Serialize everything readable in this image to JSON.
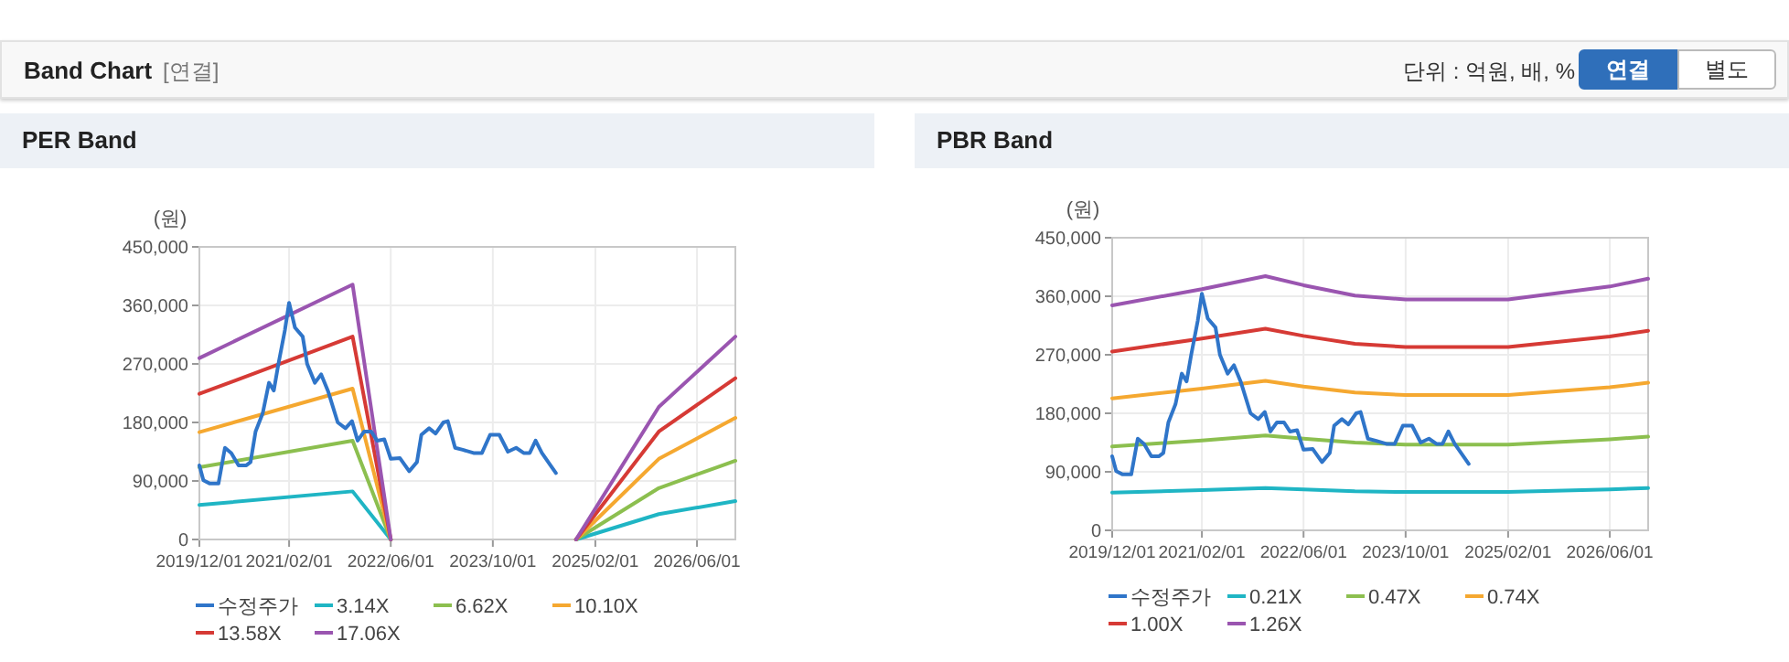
{
  "chart_data": [
    {
      "type": "line",
      "title": "PER Band",
      "ylabel": "(원)",
      "annotations": [
        "Band Chart",
        "[연결]",
        "단위 : 억원, 배, %",
        "연결",
        "별도"
      ],
      "xlim": [
        "2019-12-01",
        "2026-12-01"
      ],
      "xticks": [
        {
          "value": "2019-12-01",
          "label": "2019/12/01"
        },
        {
          "value": "2021-02-01",
          "label": "2021/02/01"
        },
        {
          "value": "2022-06-01",
          "label": "2022/06/01"
        },
        {
          "value": "2023-10-01",
          "label": "2023/10/01"
        },
        {
          "value": "2025-02-01",
          "label": "2025/02/01"
        },
        {
          "value": "2026-06-01",
          "label": "2026/06/01"
        }
      ],
      "ylim": [
        0,
        450000
      ],
      "yticks": [
        {
          "value": 0,
          "label": "0"
        },
        {
          "value": 90000,
          "label": "90,000"
        },
        {
          "value": 180000,
          "label": "180,000"
        },
        {
          "value": 270000,
          "label": "270,000"
        },
        {
          "value": 360000,
          "label": "360,000"
        },
        {
          "value": 450000,
          "label": "450,000"
        }
      ],
      "grid": true,
      "legend": "bottom",
      "marker": "none",
      "line_style": "solid",
      "series": [
        {
          "name": "수정주가",
          "color": "#2f75c9",
          "x": [
            "2019-12-01",
            "2019-12-20",
            "2020-01-20",
            "2020-03-01",
            "2020-04-01",
            "2020-05-01",
            "2020-06-05",
            "2020-07-12",
            "2020-08-01",
            "2020-08-25",
            "2020-09-28",
            "2020-10-28",
            "2020-11-20",
            "2020-12-12",
            "2021-01-12",
            "2021-02-01",
            "2021-03-01",
            "2021-04-07",
            "2021-04-28",
            "2021-06-04",
            "2021-07-04",
            "2021-08-07",
            "2021-09-21",
            "2021-10-28",
            "2021-11-28",
            "2021-12-25",
            "2022-01-25",
            "2022-02-28",
            "2022-03-28",
            "2022-05-01",
            "2022-06-01",
            "2022-07-15",
            "2022-08-28",
            "2022-10-04",
            "2022-10-25",
            "2022-12-01",
            "2023-01-01",
            "2023-02-07",
            "2023-02-28",
            "2023-04-04",
            "2023-05-10",
            "2023-07-01",
            "2023-08-10",
            "2023-09-18",
            "2023-11-01",
            "2023-12-12",
            "2024-01-20",
            "2024-02-25",
            "2024-03-25",
            "2024-04-22",
            "2024-05-22",
            "2024-07-28"
          ],
          "values": [
            114000,
            91000,
            86000,
            86000,
            141000,
            133000,
            114000,
            114000,
            119000,
            166000,
            194000,
            241000,
            229000,
            270000,
            322000,
            364000,
            326000,
            312000,
            270000,
            241000,
            254000,
            227000,
            180000,
            171000,
            182000,
            152000,
            166000,
            166000,
            152000,
            154000,
            124000,
            125000,
            105000,
            119000,
            161000,
            171000,
            163000,
            180000,
            182000,
            141000,
            138000,
            133000,
            133000,
            161000,
            161000,
            135000,
            141000,
            133000,
            133000,
            152000,
            133000,
            102000
          ]
        },
        {
          "name": "3.14X",
          "color": "#1fb5c4",
          "x": [
            "2019-12-01",
            "2021-12-01",
            "2022-06-01",
            "2023-06-01",
            "2024-11-01",
            "2025-12-01",
            "2026-12-01"
          ],
          "values": [
            53000,
            74000,
            0,
            null,
            0,
            39000,
            59000
          ]
        },
        {
          "name": "6.62X",
          "color": "#8cbf4f",
          "x": [
            "2019-12-01",
            "2021-12-01",
            "2022-06-01",
            "2023-06-01",
            "2024-11-01",
            "2025-12-01",
            "2026-12-01"
          ],
          "values": [
            111000,
            152000,
            0,
            null,
            0,
            79000,
            121000
          ]
        },
        {
          "name": "10.10X",
          "color": "#f5a830",
          "x": [
            "2019-12-01",
            "2021-12-01",
            "2022-06-01",
            "2023-06-01",
            "2024-11-01",
            "2025-12-01",
            "2026-12-01"
          ],
          "values": [
            165000,
            232000,
            0,
            null,
            0,
            124000,
            187000
          ]
        },
        {
          "name": "13.58X",
          "color": "#d63a35",
          "x": [
            "2019-12-01",
            "2021-12-01",
            "2022-06-01",
            "2023-06-01",
            "2024-11-01",
            "2025-12-01",
            "2026-12-01"
          ],
          "values": [
            224000,
            312000,
            0,
            null,
            0,
            166000,
            248000
          ]
        },
        {
          "name": "17.06X",
          "color": "#9a55b0",
          "x": [
            "2019-12-01",
            "2021-12-01",
            "2022-06-01",
            "2023-06-01",
            "2024-11-01",
            "2025-12-01",
            "2026-12-01"
          ],
          "values": [
            279000,
            392000,
            0,
            null,
            0,
            204000,
            312000
          ]
        }
      ]
    },
    {
      "type": "line",
      "title": "PBR Band",
      "ylabel": "(원)",
      "xlim": [
        "2019-12-01",
        "2026-12-01"
      ],
      "xticks": [
        {
          "value": "2019-12-01",
          "label": "2019/12/01"
        },
        {
          "value": "2021-02-01",
          "label": "2021/02/01"
        },
        {
          "value": "2022-06-01",
          "label": "2022/06/01"
        },
        {
          "value": "2023-10-01",
          "label": "2023/10/01"
        },
        {
          "value": "2025-02-01",
          "label": "2025/02/01"
        },
        {
          "value": "2026-06-01",
          "label": "2026/06/01"
        }
      ],
      "ylim": [
        0,
        450000
      ],
      "yticks": [
        {
          "value": 0,
          "label": "0"
        },
        {
          "value": 90000,
          "label": "90,000"
        },
        {
          "value": 180000,
          "label": "180,000"
        },
        {
          "value": 270000,
          "label": "270,000"
        },
        {
          "value": 360000,
          "label": "360,000"
        },
        {
          "value": 450000,
          "label": "450,000"
        }
      ],
      "grid": true,
      "legend": "bottom",
      "marker": "none",
      "line_style": "solid",
      "series": [
        {
          "name": "수정주가",
          "color": "#2f75c9",
          "x": [
            "2019-12-01",
            "2019-12-20",
            "2020-01-20",
            "2020-03-01",
            "2020-04-01",
            "2020-05-01",
            "2020-06-05",
            "2020-07-12",
            "2020-08-01",
            "2020-08-25",
            "2020-09-28",
            "2020-10-28",
            "2020-11-20",
            "2020-12-12",
            "2021-01-12",
            "2021-02-01",
            "2021-03-01",
            "2021-04-07",
            "2021-04-28",
            "2021-06-04",
            "2021-07-04",
            "2021-08-07",
            "2021-09-21",
            "2021-10-28",
            "2021-11-28",
            "2021-12-25",
            "2022-01-25",
            "2022-02-28",
            "2022-03-28",
            "2022-05-01",
            "2022-06-01",
            "2022-07-15",
            "2022-08-28",
            "2022-10-04",
            "2022-10-25",
            "2022-12-01",
            "2023-01-01",
            "2023-02-07",
            "2023-02-28",
            "2023-04-04",
            "2023-05-10",
            "2023-07-01",
            "2023-08-10",
            "2023-09-18",
            "2023-11-01",
            "2023-12-12",
            "2024-01-20",
            "2024-02-25",
            "2024-03-25",
            "2024-04-22",
            "2024-05-22",
            "2024-07-28"
          ],
          "values": [
            114000,
            91000,
            86000,
            86000,
            141000,
            133000,
            114000,
            114000,
            119000,
            166000,
            194000,
            241000,
            229000,
            270000,
            322000,
            364000,
            326000,
            312000,
            270000,
            241000,
            254000,
            227000,
            180000,
            171000,
            182000,
            152000,
            166000,
            166000,
            152000,
            154000,
            124000,
            125000,
            105000,
            119000,
            161000,
            171000,
            163000,
            180000,
            182000,
            141000,
            138000,
            133000,
            133000,
            161000,
            161000,
            135000,
            141000,
            133000,
            133000,
            152000,
            133000,
            102000
          ]
        },
        {
          "name": "0.21X",
          "color": "#1fb5c4",
          "x": [
            "2019-12-01",
            "2021-02-01",
            "2021-12-01",
            "2022-06-01",
            "2023-02-01",
            "2023-10-01",
            "2025-02-01",
            "2026-06-01",
            "2026-12-01"
          ],
          "values": [
            58000,
            62000,
            65000,
            63000,
            60000,
            59000,
            59000,
            63000,
            65000
          ]
        },
        {
          "name": "0.47X",
          "color": "#8cbf4f",
          "x": [
            "2019-12-01",
            "2021-02-01",
            "2021-12-01",
            "2022-06-01",
            "2023-02-01",
            "2023-10-01",
            "2025-02-01",
            "2026-06-01",
            "2026-12-01"
          ],
          "values": [
            129000,
            138000,
            146000,
            141000,
            135000,
            132000,
            132000,
            140000,
            144000
          ]
        },
        {
          "name": "0.74X",
          "color": "#f5a830",
          "x": [
            "2019-12-01",
            "2021-02-01",
            "2021-12-01",
            "2022-06-01",
            "2023-02-01",
            "2023-10-01",
            "2025-02-01",
            "2026-06-01",
            "2026-12-01"
          ],
          "values": [
            203000,
            218000,
            230000,
            221000,
            212000,
            208000,
            208000,
            220000,
            227000
          ]
        },
        {
          "name": "1.00X",
          "color": "#d63a35",
          "x": [
            "2019-12-01",
            "2021-02-01",
            "2021-12-01",
            "2022-06-01",
            "2023-02-01",
            "2023-10-01",
            "2025-02-01",
            "2026-06-01",
            "2026-12-01"
          ],
          "values": [
            275000,
            295000,
            310000,
            299000,
            287000,
            282000,
            282000,
            298000,
            307000
          ]
        },
        {
          "name": "1.26X",
          "color": "#9a55b0",
          "x": [
            "2019-12-01",
            "2021-02-01",
            "2021-12-01",
            "2022-06-01",
            "2023-02-01",
            "2023-10-01",
            "2025-02-01",
            "2026-06-01",
            "2026-12-01"
          ],
          "values": [
            346000,
            371000,
            391000,
            377000,
            361000,
            355000,
            355000,
            375000,
            387000
          ]
        }
      ]
    }
  ]
}
